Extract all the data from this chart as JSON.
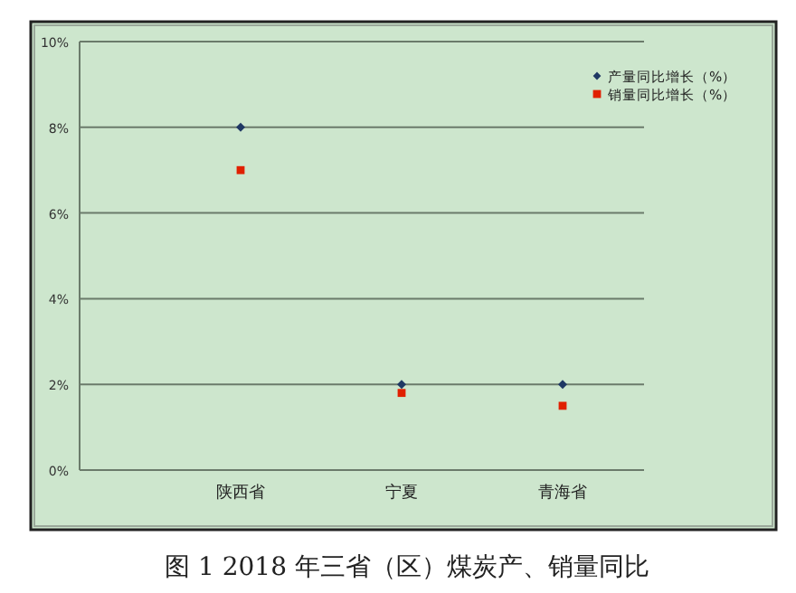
{
  "chart_data": {
    "type": "scatter",
    "title": "图 1 2018 年三省（区）煤炭产、销量同比",
    "categories": [
      "陕西省",
      "宁夏",
      "青海省"
    ],
    "series": [
      {
        "name": "产量同比增长（%）",
        "color": "#1f3864",
        "marker": "diamond",
        "values": [
          8,
          2,
          2
        ]
      },
      {
        "name": "销量同比增长（%）",
        "color": "#e02000",
        "marker": "square",
        "values": [
          7,
          1.8,
          1.5
        ]
      }
    ],
    "ylim": [
      0,
      10
    ],
    "yticks": [
      {
        "value": 0,
        "label": "0%"
      },
      {
        "value": 2,
        "label": "2%"
      },
      {
        "value": 4,
        "label": "4%"
      },
      {
        "value": 6,
        "label": "6%"
      },
      {
        "value": 8,
        "label": "8%"
      },
      {
        "value": 10,
        "label": "10%"
      }
    ],
    "grid": "y",
    "legend": "top right"
  }
}
